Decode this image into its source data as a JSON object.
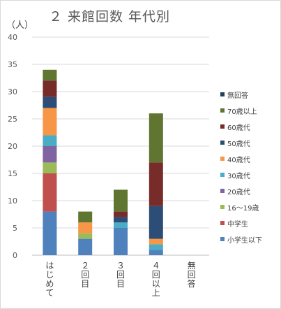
{
  "chart_data": {
    "type": "bar",
    "stacked": true,
    "title": "２ 来館回数 年代別",
    "ylabel": "（人）",
    "xlabel": "",
    "ylim": [
      0,
      40
    ],
    "yticks": [
      0,
      5,
      10,
      15,
      20,
      25,
      30,
      35,
      40
    ],
    "grid": true,
    "legend_position": "right",
    "categories": [
      "はじめて",
      "２回目",
      "３回目",
      "４回以上",
      "無回答"
    ],
    "series": [
      {
        "name": "小学生以下",
        "color": "#4f81bd",
        "values": [
          8,
          3,
          5,
          1,
          0
        ]
      },
      {
        "name": "中学生",
        "color": "#c0504d",
        "values": [
          7,
          0,
          0,
          0,
          0
        ]
      },
      {
        "name": "16～19歳",
        "color": "#9bbb59",
        "values": [
          2,
          1,
          0,
          0,
          0
        ]
      },
      {
        "name": "20歳代",
        "color": "#8064a2",
        "values": [
          3,
          0,
          0,
          0,
          0
        ]
      },
      {
        "name": "30歳代",
        "color": "#4bacc6",
        "values": [
          2,
          0,
          1,
          1,
          0
        ]
      },
      {
        "name": "40歳代",
        "color": "#f79646",
        "values": [
          5,
          2,
          0,
          1,
          0
        ]
      },
      {
        "name": "50歳代",
        "color": "#2c4d75",
        "values": [
          2,
          0,
          1,
          6,
          0
        ]
      },
      {
        "name": "60歳代",
        "color": "#772c2a",
        "values": [
          3,
          0,
          1,
          8,
          0
        ]
      },
      {
        "name": "70歳以上",
        "color": "#5f7530",
        "values": [
          2,
          2,
          4,
          9,
          0
        ]
      },
      {
        "name": "無回答",
        "color": "#253f5e",
        "values": [
          0,
          0,
          0,
          0,
          0
        ]
      }
    ]
  }
}
